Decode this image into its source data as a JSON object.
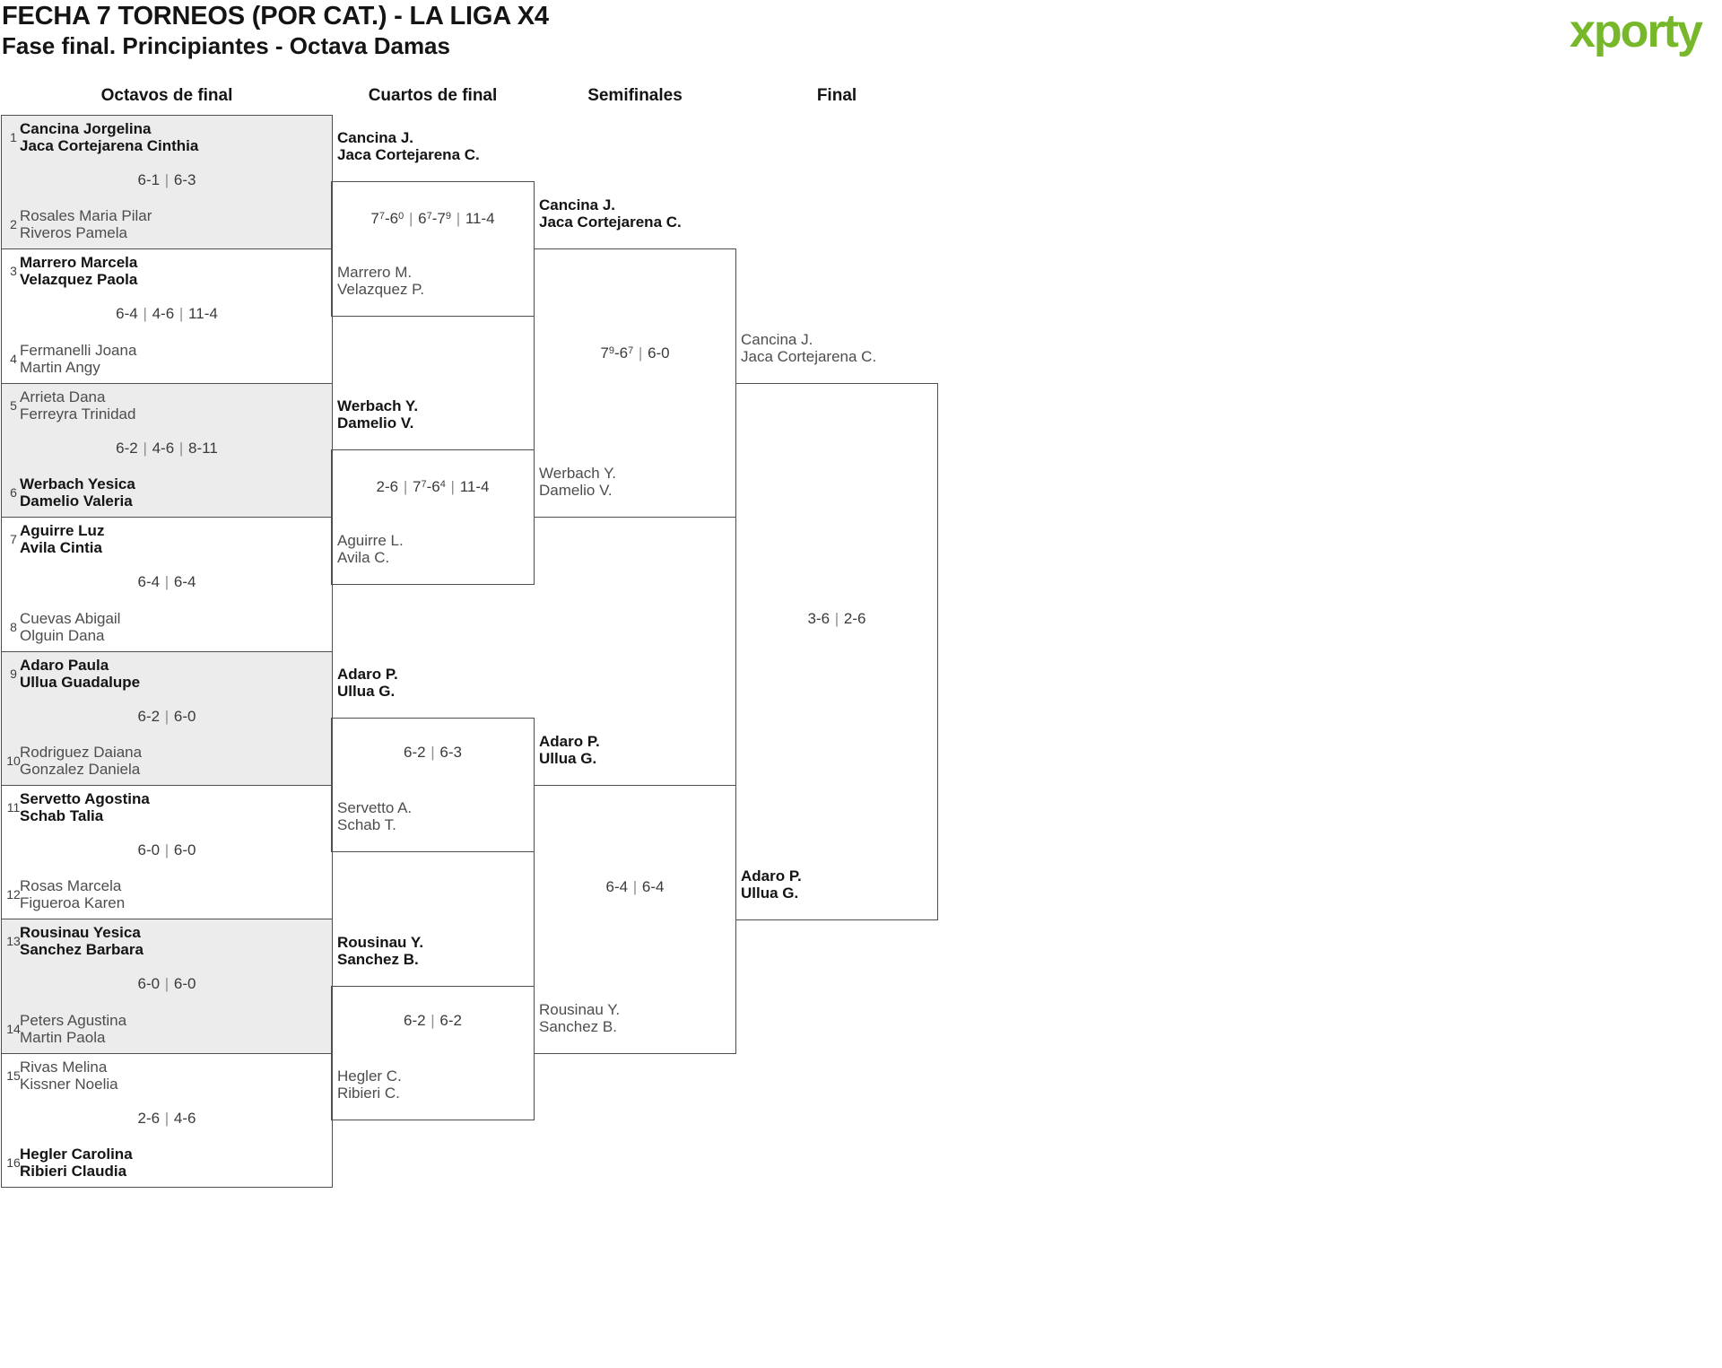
{
  "header": {
    "title": "FECHA 7 TORNEOS (POR CAT.) - LA LIGA X4",
    "subtitle": "Fase final. Principiantes - Octava Damas"
  },
  "columns": [
    "Octavos de final",
    "Cuartos de final",
    "Semifinales",
    "Final"
  ],
  "brand": {
    "name": "xporty",
    "green": "#76b82a",
    "blue": "#29a8e0",
    "orange": "#e87d1a"
  },
  "colors": {
    "line": "#4f4f4f",
    "shaded_block": "#ececec",
    "winner_text": "#141414",
    "loser_text": "#4d4d4d",
    "score_text": "#3a3a3a"
  },
  "octavos": [
    {
      "seed_top": "1",
      "top": [
        "Cancina Jorgelina",
        "Jaca Cortejarena Cinthia"
      ],
      "top_winner": true,
      "score": "6-1 | 6-3",
      "seed_bottom": "2",
      "bottom": [
        "Rosales Maria Pilar",
        "Riveros Pamela"
      ],
      "bottom_winner": false
    },
    {
      "seed_top": "3",
      "top": [
        "Marrero Marcela",
        "Velazquez Paola"
      ],
      "top_winner": true,
      "score": "6-4 | 4-6 | 11-4",
      "seed_bottom": "4",
      "bottom": [
        "Fermanelli Joana",
        "Martin Angy"
      ],
      "bottom_winner": false
    },
    {
      "seed_top": "5",
      "top": [
        "Arrieta Dana",
        "Ferreyra Trinidad"
      ],
      "top_winner": false,
      "score": "6-2 | 4-6 | 8-11",
      "seed_bottom": "6",
      "bottom": [
        "Werbach Yesica",
        "Damelio Valeria"
      ],
      "bottom_winner": true
    },
    {
      "seed_top": "7",
      "top": [
        "Aguirre Luz",
        "Avila Cintia"
      ],
      "top_winner": true,
      "score": "6-4 | 6-4",
      "seed_bottom": "8",
      "bottom": [
        "Cuevas Abigail",
        "Olguin Dana"
      ],
      "bottom_winner": false
    },
    {
      "seed_top": "9",
      "top": [
        "Adaro Paula",
        "Ullua Guadalupe"
      ],
      "top_winner": true,
      "score": "6-2 | 6-0",
      "seed_bottom": "10",
      "bottom": [
        "Rodriguez Daiana",
        "Gonzalez Daniela"
      ],
      "bottom_winner": false
    },
    {
      "seed_top": "11",
      "top": [
        "Servetto Agostina",
        "Schab Talia"
      ],
      "top_winner": true,
      "score": "6-0 | 6-0",
      "seed_bottom": "12",
      "bottom": [
        "Rosas Marcela",
        "Figueroa Karen"
      ],
      "bottom_winner": false
    },
    {
      "seed_top": "13",
      "top": [
        "Rousinau Yesica",
        "Sanchez Barbara"
      ],
      "top_winner": true,
      "score": "6-0 | 6-0",
      "seed_bottom": "14",
      "bottom": [
        "Peters Agustina",
        "Martin Paola"
      ],
      "bottom_winner": false
    },
    {
      "seed_top": "15",
      "top": [
        "Rivas Melina",
        "Kissner Noelia"
      ],
      "top_winner": false,
      "score": "2-6 | 4-6",
      "seed_bottom": "16",
      "bottom": [
        "Hegler Carolina",
        "Ribieri Claudia"
      ],
      "bottom_winner": true
    }
  ],
  "cuartos": [
    {
      "top": [
        "Cancina J.",
        "Jaca Cortejarena C."
      ],
      "top_winner": true,
      "score": "7^7-6^0 | 6^7-7^9 | 11-4",
      "bottom": [
        "Marrero M.",
        "Velazquez P."
      ],
      "bottom_winner": false
    },
    {
      "top": [
        "Werbach Y.",
        "Damelio V."
      ],
      "top_winner": true,
      "score": "2-6 | 7^7-6^4 | 11-4",
      "bottom": [
        "Aguirre L.",
        "Avila C."
      ],
      "bottom_winner": false
    },
    {
      "top": [
        "Adaro P.",
        "Ullua G."
      ],
      "top_winner": true,
      "score": "6-2 | 6-3",
      "bottom": [
        "Servetto A.",
        "Schab T."
      ],
      "bottom_winner": false
    },
    {
      "top": [
        "Rousinau Y.",
        "Sanchez B."
      ],
      "top_winner": true,
      "score": "6-2 | 6-2",
      "bottom": [
        "Hegler C.",
        "Ribieri C."
      ],
      "bottom_winner": false
    }
  ],
  "semifinales": [
    {
      "top": [
        "Cancina J.",
        "Jaca Cortejarena C."
      ],
      "top_winner": true,
      "score": "7^9-6^7 | 6-0",
      "bottom": [
        "Werbach Y.",
        "Damelio V."
      ],
      "bottom_winner": false
    },
    {
      "top": [
        "Adaro P.",
        "Ullua G."
      ],
      "top_winner": true,
      "score": "6-4 | 6-4",
      "bottom": [
        "Rousinau Y.",
        "Sanchez B."
      ],
      "bottom_winner": false
    }
  ],
  "final": {
    "top": [
      "Cancina J.",
      "Jaca Cortejarena C."
    ],
    "top_winner": false,
    "score": "3-6 | 2-6",
    "bottom": [
      "Adaro P.",
      "Ullua G."
    ],
    "bottom_winner": true
  }
}
